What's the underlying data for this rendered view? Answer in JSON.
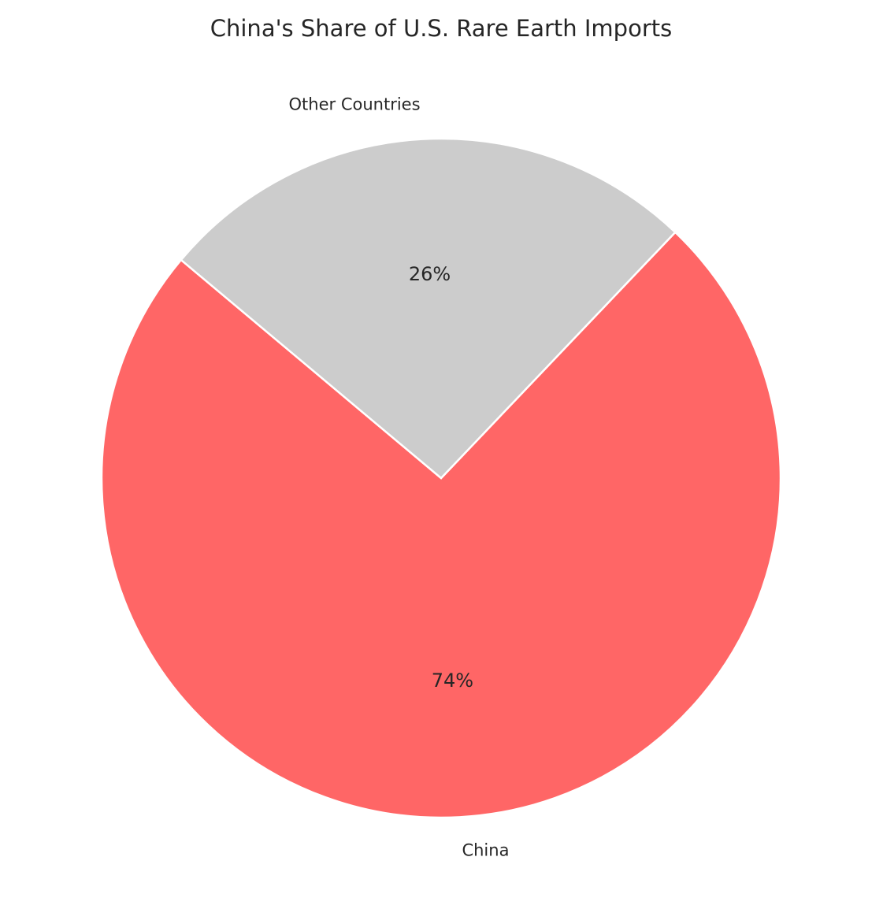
{
  "chart_data": {
    "type": "pie",
    "title": "China's Share of U.S. Rare Earth Imports",
    "categories": [
      "China",
      "Other Countries"
    ],
    "values": [
      74,
      26
    ],
    "value_labels": [
      "74%",
      "26%"
    ],
    "colors": [
      "#ff6666",
      "#cccccc"
    ]
  }
}
